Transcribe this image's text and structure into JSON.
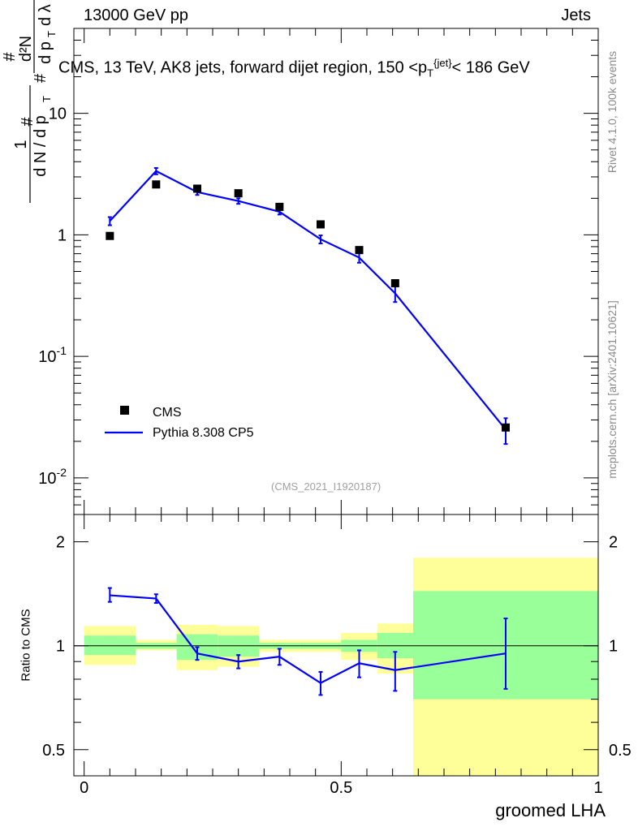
{
  "header": {
    "left": "13000 GeV pp",
    "right": "Jets"
  },
  "title_parts": {
    "prefix": "CMS, 13 TeV, AK8 jets, forward dijet region, 150 <p",
    "sup": "{jet}",
    "sub": "T",
    "suffix": "< 186 GeV"
  },
  "watermark": "(CMS_2021_I1920187)",
  "side_labels": {
    "rivet": "Rivet 4.1.0,  100k events",
    "mcplots": "mcplots.cern.ch [arXiv:2401.10621]"
  },
  "chart_data": [
    {
      "type": "scatter",
      "name": "main",
      "yscale": "log",
      "ylim": [
        0.005,
        50
      ],
      "xlim": [
        -0.02,
        1.0
      ],
      "ylabel": "# 1/(dN/dp_T #) d²N/(dp_T dλ)",
      "ytick_labels": [
        "10",
        "1",
        "10^{-1}",
        "10^{-2}"
      ],
      "ytick_values": [
        10,
        1,
        0.1,
        0.01
      ],
      "legend": [
        "CMS",
        "Pythia 8.308 CP5"
      ],
      "legend_position": "lower-left",
      "series": [
        {
          "name": "CMS",
          "marker": "square",
          "color": "#000000",
          "x": [
            0.05,
            0.14,
            0.22,
            0.3,
            0.38,
            0.46,
            0.535,
            0.605,
            0.82
          ],
          "y": [
            0.98,
            2.6,
            2.4,
            2.2,
            1.7,
            1.22,
            0.75,
            0.4,
            0.026
          ]
        },
        {
          "name": "Pythia 8.308 CP5",
          "marker": "line",
          "color": "#0000ff",
          "x": [
            0.05,
            0.14,
            0.22,
            0.3,
            0.38,
            0.46,
            0.535,
            0.605,
            0.82
          ],
          "y": [
            1.3,
            3.35,
            2.25,
            1.9,
            1.55,
            0.92,
            0.65,
            0.33,
            0.025
          ],
          "yerr": [
            0.1,
            0.2,
            0.12,
            0.1,
            0.08,
            0.07,
            0.06,
            0.05,
            0.006
          ]
        }
      ]
    },
    {
      "type": "line",
      "name": "ratio",
      "yscale": "log",
      "ylim": [
        0.42,
        2.4
      ],
      "xlim": [
        -0.02,
        1.0
      ],
      "xlabel": "groomed LHA",
      "ylabel": "Ratio to CMS",
      "ytick_labels": [
        "2",
        "1",
        "0.5"
      ],
      "ytick_values": [
        2,
        1,
        0.5
      ],
      "xtick_labels": [
        "0",
        "0.5",
        "1"
      ],
      "xtick_values": [
        0,
        0.5,
        1
      ],
      "bands": [
        {
          "xlo": 0.0,
          "xhi": 0.1,
          "stat_lo": 0.94,
          "stat_hi": 1.07,
          "tot_lo": 0.88,
          "tot_hi": 1.14
        },
        {
          "xlo": 0.1,
          "xhi": 0.18,
          "stat_lo": 0.98,
          "stat_hi": 1.02,
          "tot_lo": 0.97,
          "tot_hi": 1.04
        },
        {
          "xlo": 0.18,
          "xhi": 0.26,
          "stat_lo": 0.91,
          "stat_hi": 1.08,
          "tot_lo": 0.85,
          "tot_hi": 1.15
        },
        {
          "xlo": 0.26,
          "xhi": 0.34,
          "stat_lo": 0.93,
          "stat_hi": 1.07,
          "tot_lo": 0.87,
          "tot_hi": 1.14
        },
        {
          "xlo": 0.34,
          "xhi": 0.42,
          "stat_lo": 0.98,
          "stat_hi": 1.02,
          "tot_lo": 0.96,
          "tot_hi": 1.04
        },
        {
          "xlo": 0.42,
          "xhi": 0.5,
          "stat_lo": 0.98,
          "stat_hi": 1.02,
          "tot_lo": 0.96,
          "tot_hi": 1.04
        },
        {
          "xlo": 0.5,
          "xhi": 0.57,
          "stat_lo": 0.96,
          "stat_hi": 1.04,
          "tot_lo": 0.91,
          "tot_hi": 1.09
        },
        {
          "xlo": 0.57,
          "xhi": 0.64,
          "stat_lo": 0.92,
          "stat_hi": 1.09,
          "tot_lo": 0.83,
          "tot_hi": 1.16
        },
        {
          "xlo": 0.64,
          "xhi": 1.0,
          "stat_lo": 0.7,
          "stat_hi": 1.44,
          "tot_lo": 0.42,
          "tot_hi": 1.8
        }
      ],
      "series": [
        {
          "name": "Pythia 8.308 CP5",
          "color": "#0000ff",
          "x": [
            0.05,
            0.14,
            0.22,
            0.3,
            0.38,
            0.46,
            0.535,
            0.605,
            0.82
          ],
          "y": [
            1.4,
            1.37,
            0.95,
            0.9,
            0.93,
            0.78,
            0.89,
            0.85,
            0.95
          ],
          "yerr_lo": [
            0.06,
            0.04,
            0.04,
            0.04,
            0.05,
            0.06,
            0.08,
            0.11,
            0.2
          ],
          "yerr_hi": [
            0.07,
            0.04,
            0.04,
            0.04,
            0.05,
            0.06,
            0.08,
            0.11,
            0.25
          ]
        }
      ]
    }
  ]
}
